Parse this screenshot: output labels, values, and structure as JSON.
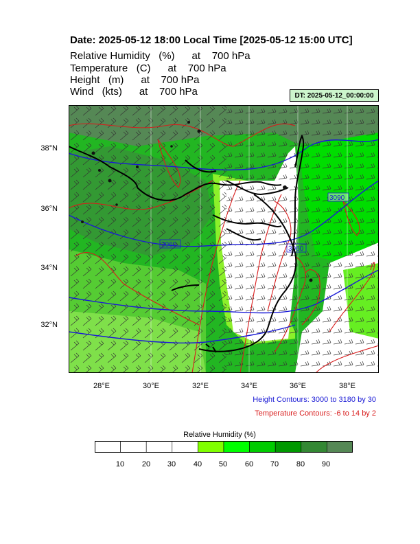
{
  "header": {
    "title": "Date: 2025-05-12  18:00 Local Time [2025-05-12  15:00 UTC]",
    "fields": [
      "Relative Humidity   (%)      at    700 hPa",
      "Temperature   (C)      at    700 hPa",
      "Height   (m)      at    700 hPa",
      "Wind   (kts)      at    700 hPa"
    ],
    "dt_badge": "DT: 2025-05-12_00:00:00"
  },
  "map": {
    "lat_labels": [
      "38°N",
      "36°N",
      "34°N",
      "32°N"
    ],
    "lon_labels": [
      "28°E",
      "30°E",
      "32°E",
      "34°E",
      "36°E",
      "38°E"
    ],
    "height_contour_labels": [
      "3060",
      "3060",
      "3090"
    ],
    "colors": {
      "height_contour": "#1a1ad6",
      "temperature_contour": "#d81c1c",
      "coastline": "#000000"
    }
  },
  "legend": {
    "height_contours": "Height Contours: 3000 to 3180 by 30",
    "temperature_contours": "Temperature Contours: -6 to 14 by 2"
  },
  "colorbar": {
    "title": "Relative Humidity  (%)",
    "labels": [
      "10",
      "20",
      "30",
      "40",
      "50",
      "60",
      "70",
      "80",
      "90"
    ],
    "colors": [
      "#ffffff",
      "#ffffff",
      "#ffffff",
      "#ffffff",
      "#80ff00",
      "#00ff00",
      "#00cc00",
      "#009900",
      "#338833",
      "#558855"
    ]
  }
}
